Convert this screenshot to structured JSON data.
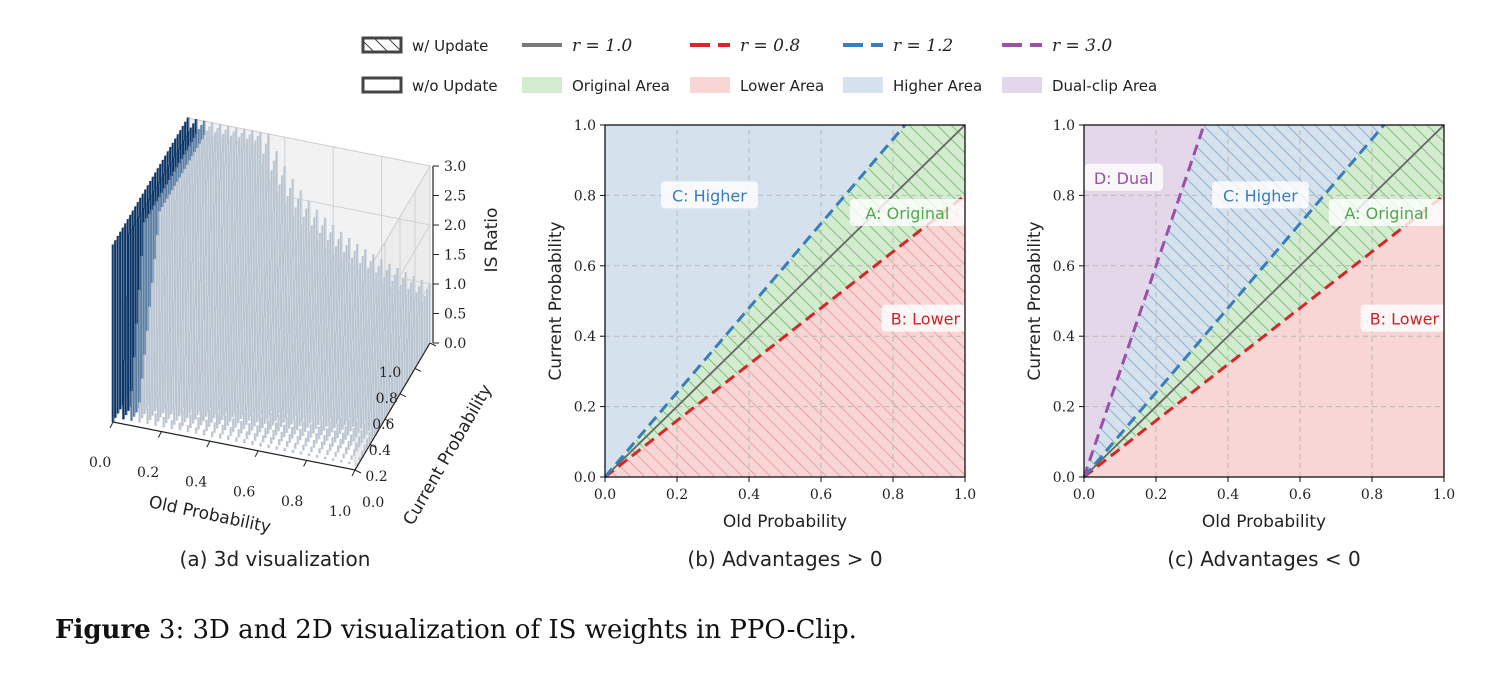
{
  "legend": {
    "items": [
      {
        "label": "w/ Update",
        "kind": "hatched-box"
      },
      {
        "label": "r = 1.0",
        "kind": "line",
        "color": "#7a7a7a",
        "dash": false
      },
      {
        "label": "r = 0.8",
        "kind": "line",
        "color": "#d62728",
        "dash": true
      },
      {
        "label": "r = 1.2",
        "kind": "line",
        "color": "#3a7dbb",
        "dash": true
      },
      {
        "label": "r = 3.0",
        "kind": "line",
        "color": "#9b4fa8",
        "dash": true
      },
      {
        "label": "w/o Update",
        "kind": "box"
      },
      {
        "label": "Original Area",
        "kind": "fill",
        "color": "#d3ebcf"
      },
      {
        "label": "Lower Area",
        "kind": "fill",
        "color": "#f8d6d6"
      },
      {
        "label": "Higher Area",
        "kind": "fill",
        "color": "#d5e2ee"
      },
      {
        "label": "Dual-clip Area",
        "kind": "fill",
        "color": "#e5d7ea"
      }
    ]
  },
  "chart_data": [
    {
      "type": "bar3d",
      "caption": "(a) 3d visualization",
      "xlabel": "Old Probability",
      "ylabel": "Current Probability",
      "zlabel": "IS Ratio",
      "xlim": [
        0,
        1
      ],
      "ylim": [
        0,
        1
      ],
      "zlim": [
        0,
        3
      ],
      "xticks": [
        "0.0",
        "0.2",
        "0.4",
        "0.6",
        "0.8",
        "1.0"
      ],
      "yticks": [
        "0.0",
        "0.2",
        "0.4",
        "0.6",
        "0.8",
        "1.0"
      ],
      "zticks": [
        "0.0",
        "0.5",
        "1.0",
        "1.5",
        "2.0",
        "2.5",
        "3.0"
      ],
      "colors": {
        "high": "#0b3566",
        "bar": "#b9c4d0"
      }
    },
    {
      "type": "area",
      "caption": "(b) Advantages > 0",
      "xlabel": "Old Probability",
      "ylabel": "Current Probability",
      "xlim": [
        0,
        1
      ],
      "ylim": [
        0,
        1
      ],
      "grid": true,
      "xticks": [
        "0.0",
        "0.2",
        "0.4",
        "0.6",
        "0.8",
        "1.0"
      ],
      "yticks": [
        "0.0",
        "0.2",
        "0.4",
        "0.6",
        "0.8",
        "1.0"
      ],
      "regions": [
        {
          "label": "C: Higher",
          "ratio_range": [
            1.2,
            null
          ],
          "color": "#d5e2ee",
          "hatched": false,
          "text_color": "#3a7dbb"
        },
        {
          "label": "A: Original",
          "ratio_range": [
            0.8,
            1.2
          ],
          "color": "#d3ebcf",
          "hatched": true,
          "text_color": "#4fa84a"
        },
        {
          "label": "B: Lower",
          "ratio_range": [
            0,
            0.8
          ],
          "color": "#f8d6d6",
          "hatched": true,
          "text_color": "#c9252a"
        }
      ],
      "lines": [
        {
          "r": 1.0,
          "color": "#666666",
          "dash": false
        },
        {
          "r": 0.8,
          "color": "#d62728",
          "dash": true
        },
        {
          "r": 1.2,
          "color": "#3a7dbb",
          "dash": true
        }
      ]
    },
    {
      "type": "area",
      "caption": "(c) Advantages < 0",
      "xlabel": "Old Probability",
      "ylabel": "Current Probability",
      "xlim": [
        0,
        1
      ],
      "ylim": [
        0,
        1
      ],
      "grid": true,
      "xticks": [
        "0.0",
        "0.2",
        "0.4",
        "0.6",
        "0.8",
        "1.0"
      ],
      "yticks": [
        "0.0",
        "0.2",
        "0.4",
        "0.6",
        "0.8",
        "1.0"
      ],
      "regions": [
        {
          "label": "D: Dual",
          "ratio_range": [
            3.0,
            null
          ],
          "color": "#e5d7ea",
          "hatched": false,
          "text_color": "#9b4fa8"
        },
        {
          "label": "C: Higher",
          "ratio_range": [
            1.2,
            3.0
          ],
          "color": "#d5e2ee",
          "hatched": true,
          "text_color": "#3a7dbb"
        },
        {
          "label": "A: Original",
          "ratio_range": [
            0.8,
            1.2
          ],
          "color": "#d3ebcf",
          "hatched": true,
          "text_color": "#4fa84a"
        },
        {
          "label": "B: Lower",
          "ratio_range": [
            0,
            0.8
          ],
          "color": "#f8d6d6",
          "hatched": false,
          "text_color": "#c9252a"
        }
      ],
      "lines": [
        {
          "r": 1.0,
          "color": "#666666",
          "dash": false
        },
        {
          "r": 0.8,
          "color": "#d62728",
          "dash": true
        },
        {
          "r": 1.2,
          "color": "#3a7dbb",
          "dash": true
        },
        {
          "r": 3.0,
          "color": "#9b4fa8",
          "dash": true
        }
      ]
    }
  ],
  "caption": {
    "prefix": "Figure",
    "text": " 3: 3D and 2D visualization of IS weights in PPO-Clip."
  }
}
